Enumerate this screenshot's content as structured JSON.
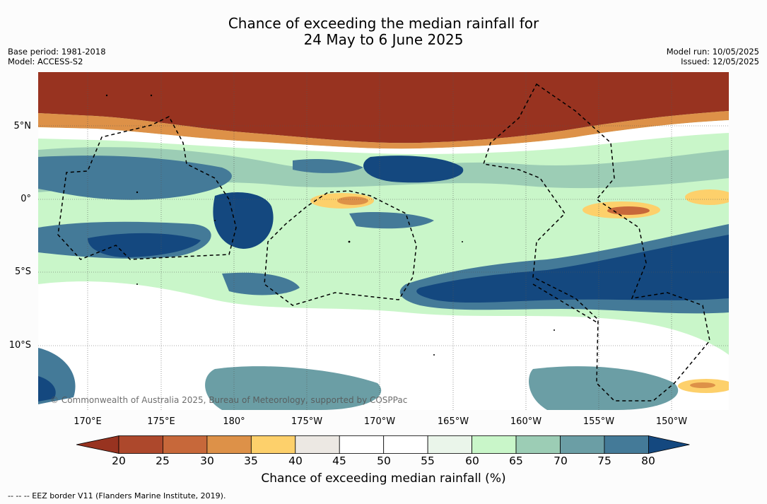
{
  "title": {
    "line1": "Chance of exceeding the median rainfall for",
    "line2": "24 May to 6 June 2025"
  },
  "meta_left": {
    "base_period": "Base period: 1981-2018",
    "model": "Model: ACCESS-S2"
  },
  "meta_right": {
    "model_run": "Model run: 10/05/2025",
    "issued": "Issued: 12/05/2025"
  },
  "map": {
    "lat_labels": [
      "5°N",
      "0°",
      "5°S",
      "10°S"
    ],
    "lon_labels": [
      "170°E",
      "175°E",
      "180°",
      "175°W",
      "170°W",
      "165°W",
      "160°W",
      "155°W",
      "150°W"
    ],
    "copyright": "© Commonwealth of Australia 2025, Bureau of Meteorology, supported by COSPPac"
  },
  "colorbar": {
    "ticks": [
      "20",
      "25",
      "30",
      "35",
      "40",
      "45",
      "50",
      "55",
      "60",
      "65",
      "70",
      "75",
      "80"
    ],
    "colors": [
      "#983320",
      "#ad482c",
      "#c7683a",
      "#dd9148",
      "#fdd06b",
      "#ece8e3",
      "#ffffff",
      "#ffffff",
      "#eaf5ea",
      "#c9f6c9",
      "#9ccdb5",
      "#6b9ea5",
      "#447a98",
      "#14487f"
    ],
    "label": "Chance of exceeding median rainfall (%)"
  },
  "footer": "--  --  -- EEZ border V11 (Flanders Marine Institute, 2019)."
}
